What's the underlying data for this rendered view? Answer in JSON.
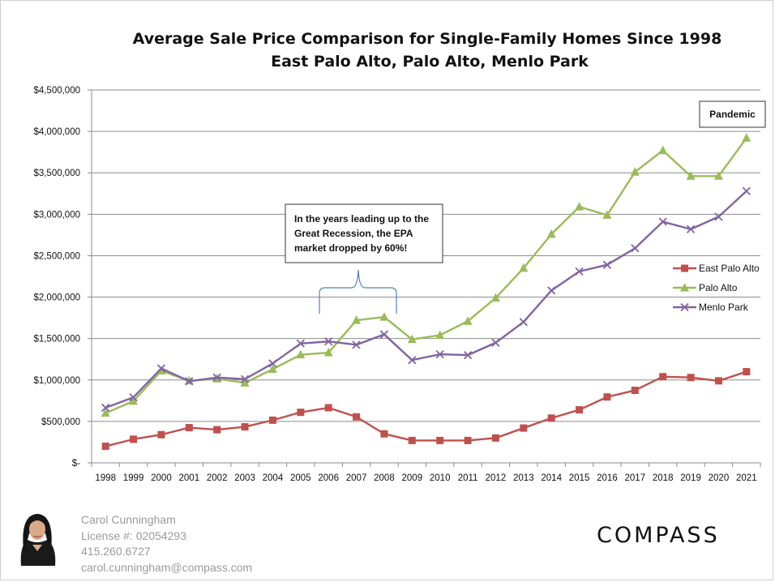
{
  "chart_data": {
    "type": "line",
    "title": "Average Sale Price Comparison for Single-Family Homes Since 1998",
    "subtitle": "East Palo Alto, Palo Alto, Menlo Park",
    "x": [
      "1998",
      "1999",
      "2000",
      "2001",
      "2002",
      "2003",
      "2004",
      "2005",
      "2006",
      "2007",
      "2008",
      "2009",
      "2010",
      "2011",
      "2012",
      "2013",
      "2014",
      "2015",
      "2016",
      "2017",
      "2018",
      "2019",
      "2020",
      "2021"
    ],
    "y_ticks": [
      "$-",
      "$500,000",
      "$1,000,000",
      "$1,500,000",
      "$2,000,000",
      "$2,500,000",
      "$3,000,000",
      "$3,500,000",
      "$4,000,000",
      "$4,500,000"
    ],
    "ylim": [
      0,
      4500000
    ],
    "grid": true,
    "legend_position": "right",
    "series": [
      {
        "name": "East Palo Alto",
        "color": "#c0504d",
        "marker": "square",
        "values": [
          200000,
          285000,
          340000,
          425000,
          400000,
          435000,
          515000,
          610000,
          665000,
          555000,
          350000,
          270000,
          270000,
          270000,
          300000,
          420000,
          540000,
          640000,
          795000,
          875000,
          1040000,
          1030000,
          990000,
          1100000
        ]
      },
      {
        "name": "Palo Alto",
        "color": "#9bbb59",
        "marker": "triangle",
        "values": [
          600000,
          745000,
          1110000,
          990000,
          1015000,
          965000,
          1130000,
          1305000,
          1330000,
          1720000,
          1760000,
          1490000,
          1540000,
          1710000,
          1990000,
          2350000,
          2760000,
          3090000,
          2990000,
          3510000,
          3770000,
          3460000,
          3460000,
          3920000
        ]
      },
      {
        "name": "Menlo Park",
        "color": "#8064a2",
        "marker": "x",
        "values": [
          665000,
          790000,
          1140000,
          985000,
          1030000,
          1010000,
          1200000,
          1440000,
          1465000,
          1425000,
          1550000,
          1240000,
          1310000,
          1300000,
          1450000,
          1700000,
          2080000,
          2310000,
          2390000,
          2590000,
          2910000,
          2820000,
          2970000,
          3280000
        ]
      }
    ],
    "annotations": [
      {
        "lines": [
          "In the years leading up to the",
          "Great Recession, the EPA",
          "market dropped by 60%!"
        ],
        "brace_from": "2006",
        "brace_to": "2008"
      },
      {
        "lines": [
          "Pandemic"
        ]
      }
    ]
  },
  "footer": {
    "name": "Carol Cunningham",
    "license": "License #: 02054293",
    "phone": "415.260.6727",
    "email": "carol.cunningham@compass.com",
    "brand": "COMPASS"
  }
}
